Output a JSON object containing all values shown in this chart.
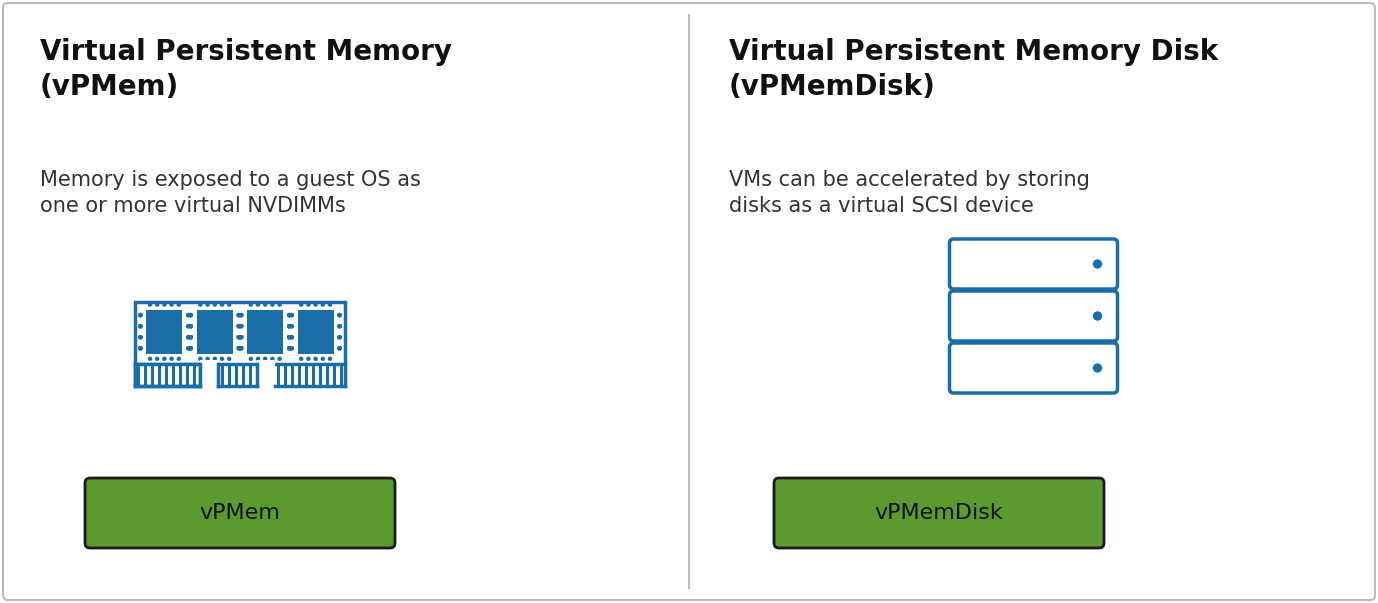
{
  "background_color": "#ffffff",
  "border_color": "#bbbbbb",
  "panel1": {
    "title": "Virtual Persistent Memory\n(vPMem)",
    "description": "Memory is exposed to a guest OS as\none or more virtual NVDIMMs",
    "button_label": "vPMem",
    "button_color": "#5a9a2f",
    "button_text_color": "#111111"
  },
  "panel2": {
    "title": "Virtual Persistent Memory Disk\n(vPMemDisk)",
    "description": "VMs can be accelerated by storing\ndisks as a virtual SCSI device",
    "button_label": "vPMemDisk",
    "button_color": "#5a9a2f",
    "button_text_color": "#111111"
  },
  "icon_color": "#1a6ea8",
  "chip_fill": "#1a6ea8",
  "title_fontsize": 20,
  "desc_fontsize": 15,
  "button_fontsize": 16
}
